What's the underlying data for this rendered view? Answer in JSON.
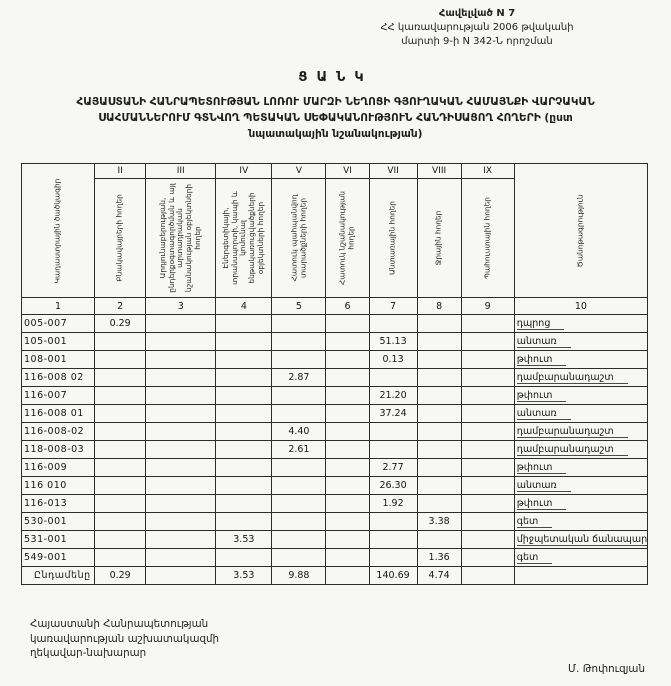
{
  "annex": {
    "line1": "Հավելված N 7",
    "line2": "ՀՀ կառավարության 2006 թվականի",
    "line3": "մարտի 9-ի N 342-Ն որոշման"
  },
  "title": {
    "main": "ՑԱՆԿ",
    "lines": [
      "ՀԱՅԱՍՏԱՆԻ ՀԱՆՐԱՊԵՏՈՒԹՅԱՆ ԼՈՌՈՒ ՄԱՐԶԻ ՆԵՂՈՑԻ ԳՅՈՒՂԱԿԱՆ ՀԱՄԱՅՆՔԻ ՎԱՐՉԱԿԱՆ",
      "ՍԱՀՄԱՆՆԵՐՈՒՄ ԳՏՆՎՈՂ ՊԵՏԱԿԱՆ ՍԵՓԱԿԱՆՈՒԹՅՈՒՆ ՀԱՆԴԻՍԱՑՈՂ ՀՈՂԵՐԻ (ըստ",
      "նպատակային նշանակության)"
    ]
  },
  "table": {
    "roman_numerals": [
      "II",
      "III",
      "IV",
      "V",
      "VI",
      "VII",
      "VIII",
      "IX"
    ],
    "col_headers": [
      "Կադաստրային ծածկագիր",
      "Բնակավայրերի հողեր",
      "Արդյունաբերության, ընդերքօգտագործման և այլ արտադրական նշանակության օբյեկտների հողեր",
      "Էներգետիկայի, տրանսպորտի, կապի և կոմունալ ենթակառուցվածքների օբյեկտների հողեր",
      "Հատուկ պահպանվող տարածքների հողեր",
      "Հատուկ նշանակության հողեր",
      "Անտառային հողեր",
      "Ջրային հողեր",
      "Պահուստային հողեր",
      "Ծանոթագրություն"
    ],
    "col_numbers": [
      "1",
      "2",
      "3",
      "4",
      "5",
      "6",
      "7",
      "8",
      "9",
      "10"
    ],
    "rows": [
      {
        "cells": [
          "005-007",
          "0.29",
          "",
          "",
          "",
          "",
          "",
          "",
          "",
          "դպրոց"
        ]
      },
      {
        "cells": [
          "105-001",
          "",
          "",
          "",
          "",
          "",
          "51.13",
          "",
          "",
          "անտառ"
        ]
      },
      {
        "cells": [
          "108-001",
          "",
          "",
          "",
          "",
          "",
          "0.13",
          "",
          "",
          "թփուտ"
        ]
      },
      {
        "cells": [
          "116-008 02",
          "",
          "",
          "",
          "2.87",
          "",
          "",
          "",
          "",
          "դամբարանադաշտ"
        ]
      },
      {
        "cells": [
          "116-007",
          "",
          "",
          "",
          "",
          "",
          "21.20",
          "",
          "",
          "թփուտ"
        ]
      },
      {
        "cells": [
          "116-008 01",
          "",
          "",
          "",
          "",
          "",
          "37.24",
          "",
          "",
          "անտառ"
        ]
      },
      {
        "cells": [
          "116-008-02",
          "",
          "",
          "",
          "4.40",
          "",
          "",
          "",
          "",
          "դամբարանադաշտ"
        ]
      },
      {
        "cells": [
          "118-008-03",
          "",
          "",
          "",
          "2.61",
          "",
          "",
          "",
          "",
          "դամբարանադաշտ"
        ]
      },
      {
        "cells": [
          "116-009",
          "",
          "",
          "",
          "",
          "",
          "2.77",
          "",
          "",
          "թփուտ"
        ]
      },
      {
        "cells": [
          "116 010",
          "",
          "",
          "",
          "",
          "",
          "26.30",
          "",
          "",
          "անտառ"
        ]
      },
      {
        "cells": [
          "116-013",
          "",
          "",
          "",
          "",
          "",
          "1.92",
          "",
          "",
          "թփուտ"
        ]
      },
      {
        "cells": [
          "530-001",
          "",
          "",
          "",
          "",
          "",
          "",
          "3.38",
          "",
          "գետ"
        ]
      },
      {
        "cells": [
          "531-001",
          "",
          "",
          "3.53",
          "",
          "",
          "",
          "",
          "",
          "միջպետական ճանապարհ"
        ]
      },
      {
        "cells": [
          "549-001",
          "",
          "",
          "",
          "",
          "",
          "",
          "1.36",
          "",
          "գետ"
        ]
      }
    ],
    "total_row": {
      "cells": [
        "Ընդամենը",
        "0.29",
        "",
        "3.53",
        "9.88",
        "",
        "140.69",
        "4.74",
        "",
        ""
      ]
    }
  },
  "footer": {
    "lines": [
      "Հայաստանի Հանրապետության",
      "կառավարության աշխատակազմի",
      "ղեկավար-նախարար"
    ],
    "signature": "Մ. Թոփուզյան"
  }
}
